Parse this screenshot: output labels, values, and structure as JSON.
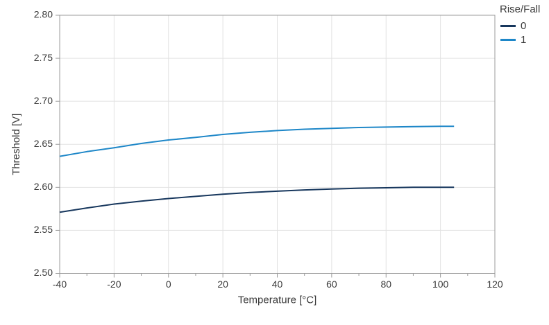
{
  "chart_data": {
    "type": "line",
    "title": "",
    "xlabel": "Temperature [°C]",
    "ylabel": "Threshold [V]",
    "xlim": [
      -40,
      120
    ],
    "ylim": [
      2.5,
      2.8
    ],
    "grid": true,
    "legend": {
      "title": "Rise/Fall",
      "position": "outside-top-right"
    },
    "x_ticks": [
      -40,
      -20,
      0,
      20,
      40,
      60,
      80,
      100,
      120
    ],
    "x_tick_labels": [
      "-40",
      "-20",
      "0",
      "20",
      "40",
      "60",
      "80",
      "100",
      "120"
    ],
    "x_minor_ticks": [
      -30,
      -10,
      10,
      30,
      50,
      70,
      90,
      110
    ],
    "y_ticks": [
      2.5,
      2.55,
      2.6,
      2.65,
      2.7,
      2.75,
      2.8
    ],
    "y_tick_labels": [
      "2.50",
      "2.55",
      "2.60",
      "2.65",
      "2.70",
      "2.75",
      "2.80"
    ],
    "x": [
      -40,
      -30,
      -20,
      -10,
      0,
      10,
      20,
      30,
      40,
      50,
      60,
      70,
      80,
      90,
      100,
      105
    ],
    "series": [
      {
        "name": "0",
        "color": "#17375d",
        "values": [
          2.571,
          2.576,
          2.5805,
          2.584,
          2.587,
          2.5895,
          2.592,
          2.594,
          2.5955,
          2.597,
          2.598,
          2.599,
          2.5995,
          2.6,
          2.6,
          2.6
        ]
      },
      {
        "name": "1",
        "color": "#1e87c8",
        "values": [
          2.636,
          2.6415,
          2.646,
          2.651,
          2.655,
          2.658,
          2.6615,
          2.664,
          2.666,
          2.6675,
          2.6685,
          2.6695,
          2.67,
          2.6705,
          2.671,
          2.671
        ]
      }
    ],
    "colors": {
      "background": "#ffffff",
      "grid": "#e2e2e2",
      "axis": "#9b9b9b",
      "text": "#3a3a3a"
    }
  }
}
